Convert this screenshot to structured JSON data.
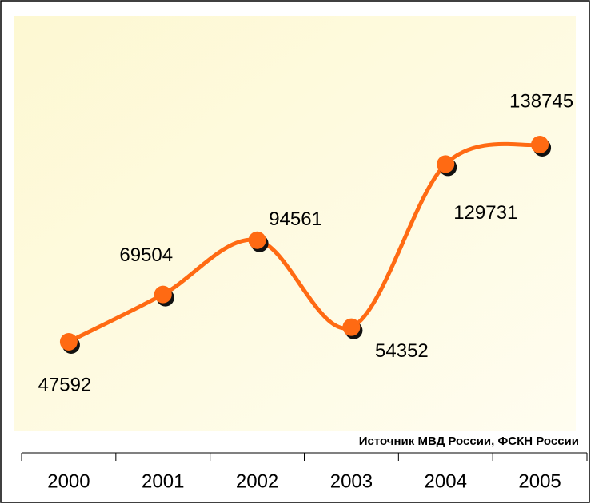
{
  "chart_data": {
    "type": "line",
    "categories": [
      "2000",
      "2001",
      "2002",
      "2003",
      "2004",
      "2005"
    ],
    "values": [
      47592,
      69504,
      94561,
      54352,
      129731,
      138745
    ],
    "color": "#ff6a13",
    "source": "Источник МВД России, ФСКН России"
  }
}
